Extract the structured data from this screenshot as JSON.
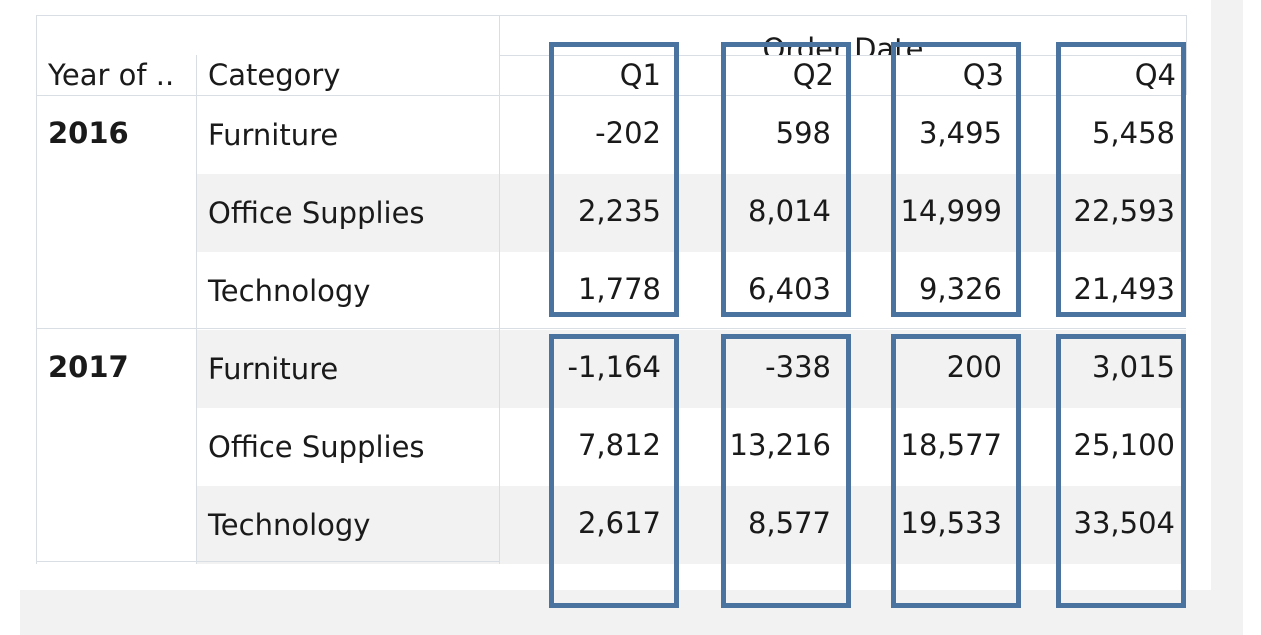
{
  "header": {
    "row_field_1": "Year of ..",
    "row_field_2": "Category",
    "column_field": "Order Date"
  },
  "quarters": [
    "Q1",
    "Q2",
    "Q3",
    "Q4"
  ],
  "chart_data": {
    "type": "table",
    "column_header": "Order Date",
    "columns": [
      "Q1",
      "Q2",
      "Q3",
      "Q4"
    ],
    "row_fields": [
      "Year of ..",
      "Category"
    ],
    "groups": [
      {
        "year": "2016",
        "rows": [
          {
            "category": "Furniture",
            "values": [
              "-202",
              "598",
              "3,495",
              "5,458"
            ]
          },
          {
            "category": "Office Supplies",
            "values": [
              "2,235",
              "8,014",
              "14,999",
              "22,593"
            ]
          },
          {
            "category": "Technology",
            "values": [
              "1,778",
              "6,403",
              "9,326",
              "21,493"
            ]
          }
        ]
      },
      {
        "year": "2017",
        "rows": [
          {
            "category": "Furniture",
            "values": [
              "-1,164",
              "-338",
              "200",
              "3,015"
            ]
          },
          {
            "category": "Office Supplies",
            "values": [
              "7,812",
              "13,216",
              "18,577",
              "25,100"
            ]
          },
          {
            "category": "Technology",
            "values": [
              "2,617",
              "8,577",
              "19,533",
              "33,504"
            ]
          }
        ]
      }
    ]
  },
  "colors": {
    "highlight_border": "#4a73a0",
    "band_fill": "#f2f2f2",
    "grid_line": "#d9dee4"
  }
}
